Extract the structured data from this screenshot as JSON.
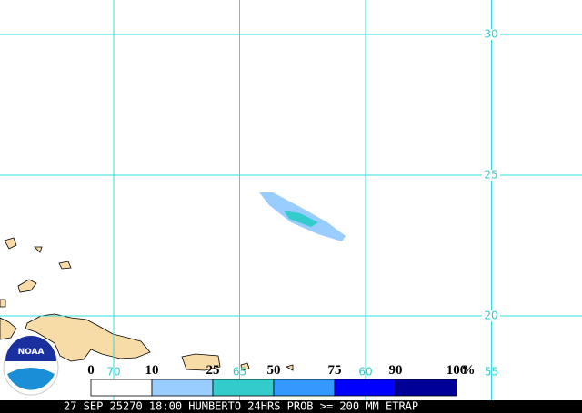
{
  "map": {
    "latitudes": [
      30,
      25,
      20
    ],
    "longitudes": [
      70,
      65,
      60,
      55
    ],
    "legend": {
      "thresholds": [
        0,
        10,
        25,
        50,
        75,
        90,
        100
      ],
      "unit": "%",
      "colors": [
        "#ffffff",
        "#99ccff",
        "#33cccc",
        "#3399ff",
        "#0000ff",
        "#000099"
      ]
    },
    "logo": "NOAA",
    "caption": "27 SEP 25270 18:00 HUMBERTO 24HRS PROB >= 200 MM ETRAP"
  }
}
